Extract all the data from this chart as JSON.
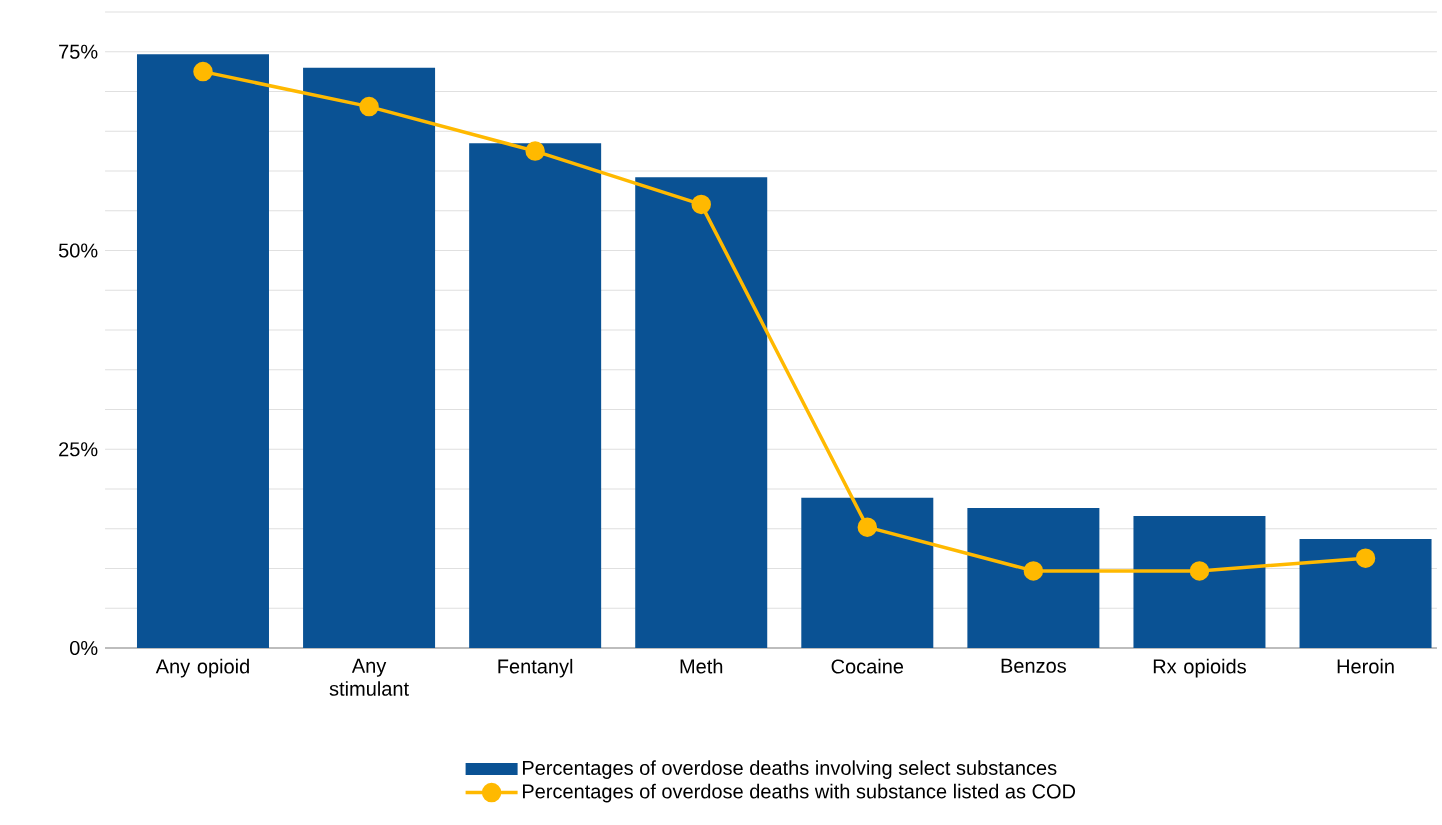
{
  "chart_data": {
    "type": "bar",
    "categories": [
      "Any opioid",
      "Any stimulant",
      "Fentanyl",
      "Meth",
      "Cocaine",
      "Benzos",
      "Rx opioids",
      "Heroin"
    ],
    "series": [
      {
        "name": "Percentages of overdose deaths involving select substances",
        "color": "#0a5294",
        "values": [
          74.7,
          73.0,
          63.5,
          59.2,
          18.9,
          17.6,
          16.6,
          13.7
        ]
      },
      {
        "name": "Percentages of overdose deaths with substance listed as COD",
        "type": "line",
        "color": "#ffb900",
        "marker": "circle",
        "values": [
          72.5,
          68.1,
          62.5,
          55.8,
          15.2,
          9.7,
          9.7,
          11.3
        ]
      }
    ],
    "ylim": [
      0,
      80
    ],
    "yticks": [
      {
        "value": 0,
        "label": "0%"
      },
      {
        "value": 5,
        "label": null
      },
      {
        "value": 10,
        "label": null
      },
      {
        "value": 15,
        "label": null
      },
      {
        "value": 20,
        "label": null
      },
      {
        "value": 25,
        "label": "25%"
      },
      {
        "value": 30,
        "label": null
      },
      {
        "value": 35,
        "label": null
      },
      {
        "value": 40,
        "label": null
      },
      {
        "value": 45,
        "label": null
      },
      {
        "value": 50,
        "label": "50%"
      },
      {
        "value": 55,
        "label": null
      },
      {
        "value": 60,
        "label": null
      },
      {
        "value": 65,
        "label": null
      },
      {
        "value": 70,
        "label": null
      },
      {
        "value": 75,
        "label": "75%"
      },
      {
        "value": 80,
        "label": null
      }
    ],
    "grid": "y",
    "legend": "bottom"
  }
}
